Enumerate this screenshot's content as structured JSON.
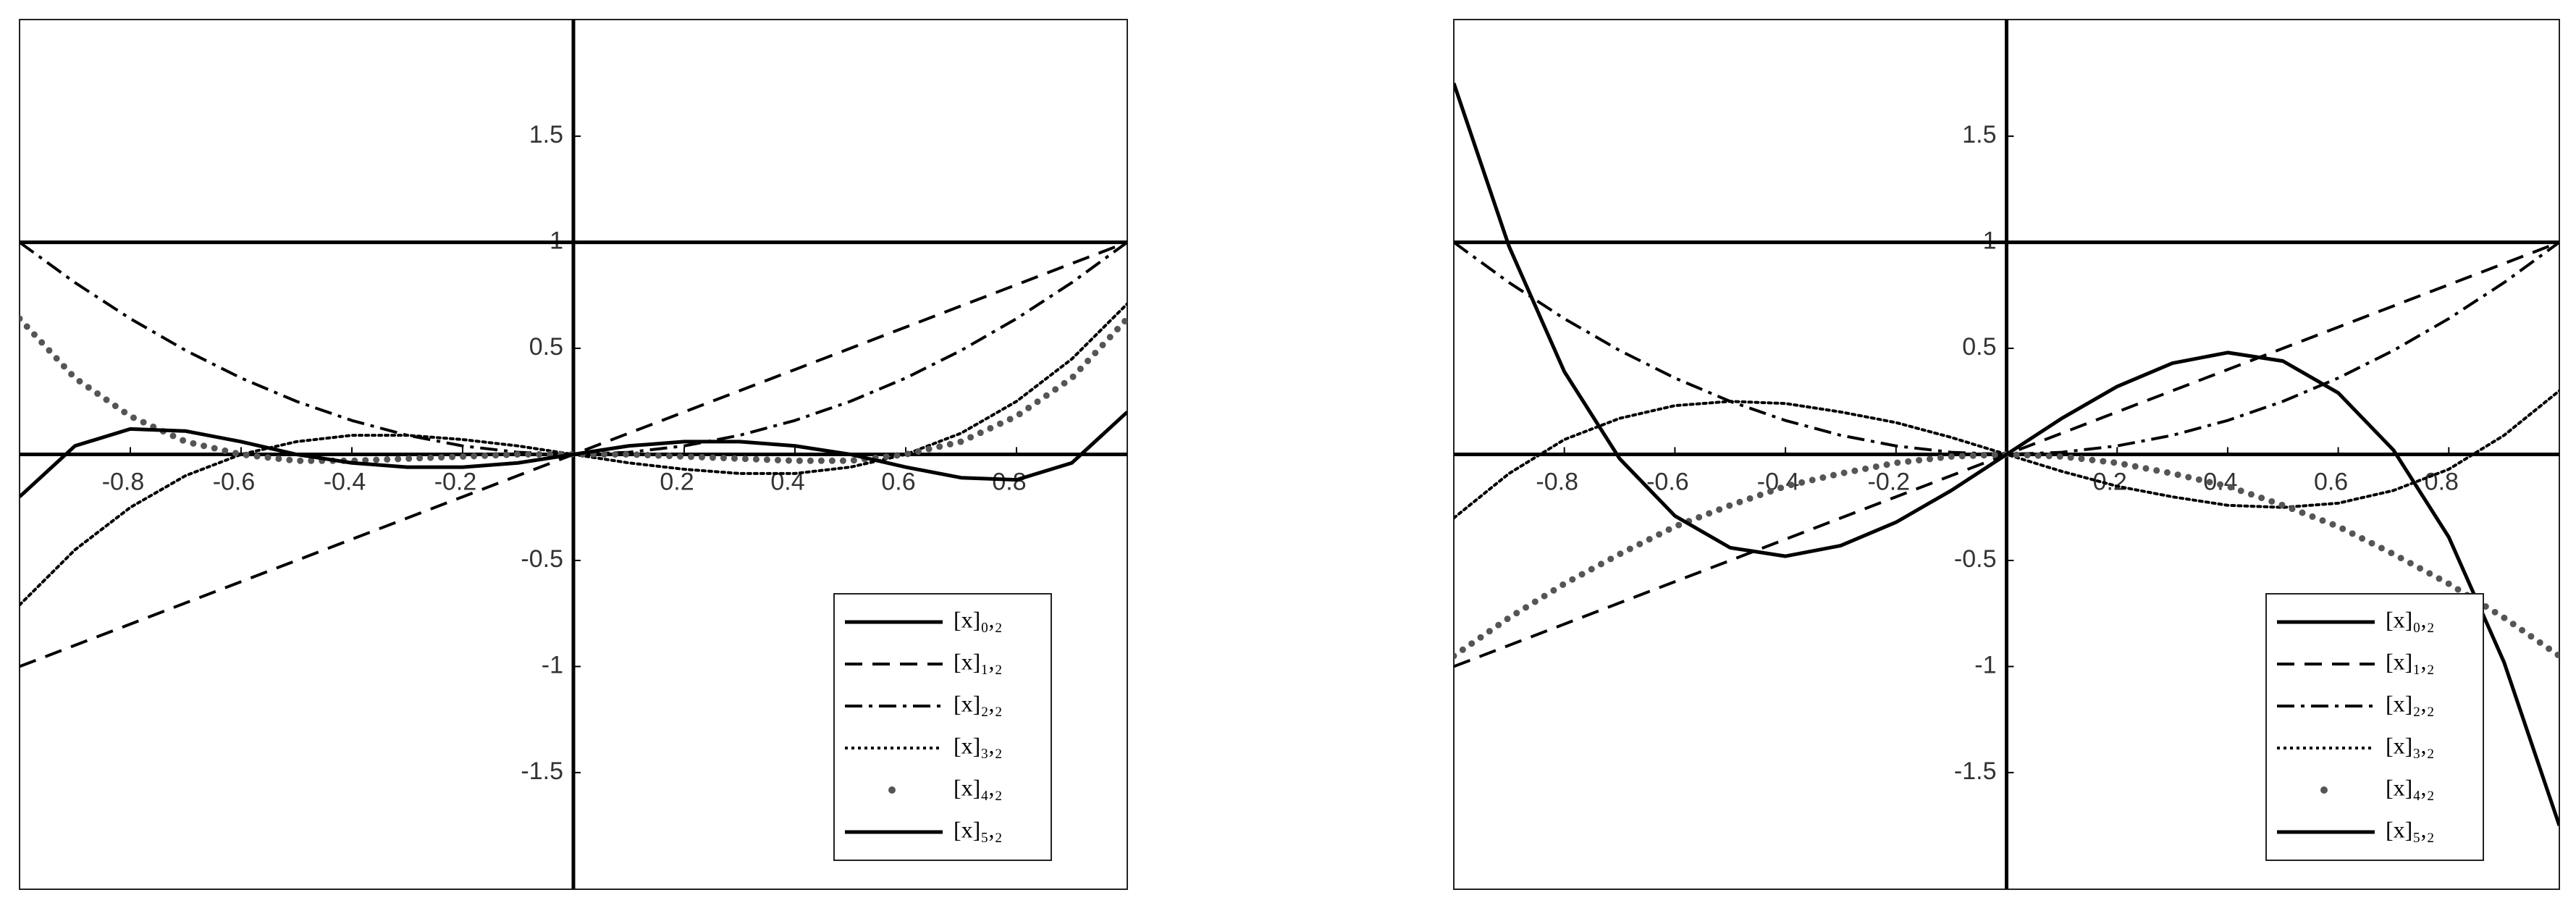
{
  "chart_data": [
    {
      "type": "line",
      "xlim": [
        -1,
        1
      ],
      "ylim": [
        -2.05,
        2.05
      ],
      "xticks": [
        -0.8,
        -0.6,
        -0.4,
        -0.2,
        0.2,
        0.4,
        0.6,
        0.8
      ],
      "yticks": [
        -1.5,
        -1,
        -0.5,
        0.5,
        1,
        1.5
      ],
      "legend": "lower right",
      "x": [
        -1,
        -0.9,
        -0.8,
        -0.7,
        -0.6,
        -0.5,
        -0.4,
        -0.3,
        -0.2,
        -0.1,
        0,
        0.1,
        0.2,
        0.3,
        0.4,
        0.5,
        0.6,
        0.7,
        0.8,
        0.9,
        1
      ],
      "series": [
        {
          "name": "[x]₀,₂",
          "color": "#000000",
          "style": "solid",
          "values": [
            1,
            1,
            1,
            1,
            1,
            1,
            1,
            1,
            1,
            1,
            1,
            1,
            1,
            1,
            1,
            1,
            1,
            1,
            1,
            1,
            1
          ]
        },
        {
          "name": "[x]₁,₂",
          "color": "#000000",
          "style": "dashed",
          "values": [
            -1,
            -0.9,
            -0.8,
            -0.7,
            -0.6,
            -0.5,
            -0.4,
            -0.3,
            -0.2,
            -0.1,
            0,
            0.1,
            0.2,
            0.3,
            0.4,
            0.5,
            0.6,
            0.7,
            0.8,
            0.9,
            1
          ]
        },
        {
          "name": "[x]₂,₂",
          "color": "#000000",
          "style": "dashdot",
          "values": [
            1,
            0.81,
            0.64,
            0.49,
            0.36,
            0.25,
            0.16,
            0.09,
            0.04,
            0.01,
            0,
            0.01,
            0.04,
            0.09,
            0.16,
            0.25,
            0.36,
            0.49,
            0.64,
            0.81,
            1
          ]
        },
        {
          "name": "[x]₃,₂",
          "color": "#000000",
          "style": "dotted",
          "values": [
            -0.71,
            -0.45,
            -0.25,
            -0.1,
            0,
            0.06,
            0.09,
            0.09,
            0.07,
            0.04,
            0,
            -0.04,
            -0.07,
            -0.09,
            -0.09,
            -0.06,
            0,
            0.1,
            0.25,
            0.45,
            0.71
          ]
        },
        {
          "name": "[x]₄,₂",
          "color": "#555555",
          "style": "dots",
          "values": [
            0.64,
            0.36,
            0.18,
            0.06,
            0,
            -0.03,
            -0.03,
            -0.02,
            -0.01,
            0,
            0,
            0,
            -0.01,
            -0.02,
            -0.03,
            -0.03,
            0,
            0.06,
            0.18,
            0.36,
            0.64
          ]
        },
        {
          "name": "[x]₅,₂",
          "color": "#000000",
          "style": "solid",
          "values": [
            -0.2,
            0.04,
            0.12,
            0.11,
            0.06,
            0,
            -0.04,
            -0.06,
            -0.06,
            -0.04,
            0,
            0.04,
            0.06,
            0.06,
            0.04,
            0,
            -0.06,
            -0.11,
            -0.12,
            -0.04,
            0.2
          ]
        }
      ]
    },
    {
      "type": "line",
      "xlim": [
        -1,
        1
      ],
      "ylim": [
        -2.05,
        2.05
      ],
      "xticks": [
        -0.8,
        -0.6,
        -0.4,
        -0.2,
        0.2,
        0.4,
        0.6,
        0.8
      ],
      "yticks": [
        -1.5,
        -1,
        -0.5,
        0.5,
        1,
        1.5
      ],
      "legend": "lower right",
      "x": [
        -1,
        -0.9,
        -0.8,
        -0.7,
        -0.6,
        -0.5,
        -0.4,
        -0.3,
        -0.2,
        -0.1,
        0,
        0.1,
        0.2,
        0.3,
        0.4,
        0.5,
        0.6,
        0.7,
        0.8,
        0.9,
        1
      ],
      "series": [
        {
          "name": "[x]₀,₂",
          "color": "#000000",
          "style": "solid",
          "values": [
            1,
            1,
            1,
            1,
            1,
            1,
            1,
            1,
            1,
            1,
            1,
            1,
            1,
            1,
            1,
            1,
            1,
            1,
            1,
            1,
            1
          ]
        },
        {
          "name": "[x]₁,₂",
          "color": "#000000",
          "style": "dashed",
          "values": [
            -1,
            -0.9,
            -0.8,
            -0.7,
            -0.6,
            -0.5,
            -0.4,
            -0.3,
            -0.2,
            -0.1,
            0,
            0.1,
            0.2,
            0.3,
            0.4,
            0.5,
            0.6,
            0.7,
            0.8,
            0.9,
            1
          ]
        },
        {
          "name": "[x]₂,₂",
          "color": "#000000",
          "style": "dashdot",
          "values": [
            1,
            0.81,
            0.64,
            0.49,
            0.36,
            0.25,
            0.16,
            0.09,
            0.04,
            0.01,
            0,
            0.01,
            0.04,
            0.09,
            0.16,
            0.25,
            0.36,
            0.49,
            0.64,
            0.81,
            1
          ]
        },
        {
          "name": "[x]₃,₂",
          "color": "#000000",
          "style": "dotted",
          "values": [
            -0.3,
            -0.09,
            0.07,
            0.17,
            0.23,
            0.25,
            0.24,
            0.2,
            0.15,
            0.08,
            0,
            -0.08,
            -0.15,
            -0.2,
            -0.24,
            -0.25,
            -0.23,
            -0.17,
            -0.07,
            0.09,
            0.3
          ]
        },
        {
          "name": "[x]₄,₂",
          "color": "#555555",
          "style": "dots",
          "values": [
            -0.95,
            -0.77,
            -0.61,
            -0.47,
            -0.34,
            -0.24,
            -0.15,
            -0.09,
            -0.04,
            -0.01,
            0,
            -0.01,
            -0.04,
            -0.09,
            -0.15,
            -0.24,
            -0.34,
            -0.47,
            -0.61,
            -0.77,
            -0.95
          ]
        },
        {
          "name": "[x]₅,₂",
          "color": "#000000",
          "style": "solid",
          "values": [
            1.75,
            0.98,
            0.39,
            -0.02,
            -0.29,
            -0.44,
            -0.48,
            -0.43,
            -0.32,
            -0.17,
            0,
            0.17,
            0.32,
            0.43,
            0.48,
            0.44,
            0.29,
            0.02,
            -0.39,
            -0.98,
            -1.75
          ]
        }
      ]
    }
  ]
}
